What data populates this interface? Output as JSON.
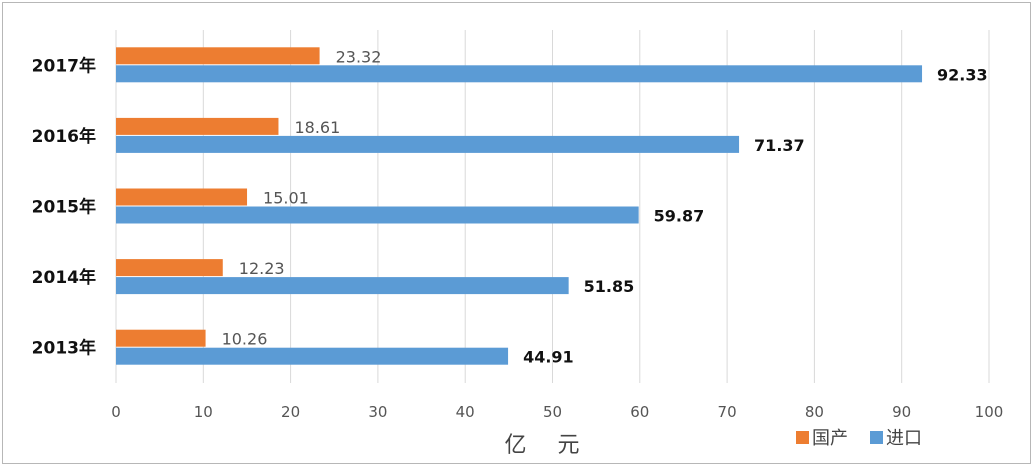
{
  "chart_data": {
    "type": "bar",
    "orientation": "horizontal",
    "categories": [
      "2013年",
      "2014年",
      "2015年",
      "2016年",
      "2017年"
    ],
    "series": [
      {
        "name": "国产",
        "color": "#ED7D31",
        "values": [
          10.26,
          12.23,
          15.01,
          18.61,
          23.32
        ]
      },
      {
        "name": "进口",
        "color": "#5B9BD5",
        "values": [
          44.91,
          51.85,
          59.87,
          71.37,
          92.33
        ]
      }
    ],
    "xlabel": "亿 元",
    "xlim": [
      0,
      100
    ],
    "xticks": [
      "0",
      "10",
      "20",
      "30",
      "40",
      "50",
      "60",
      "70",
      "80",
      "90",
      "100"
    ],
    "grid": true,
    "legend": "bottom-right",
    "data_labels": true
  }
}
